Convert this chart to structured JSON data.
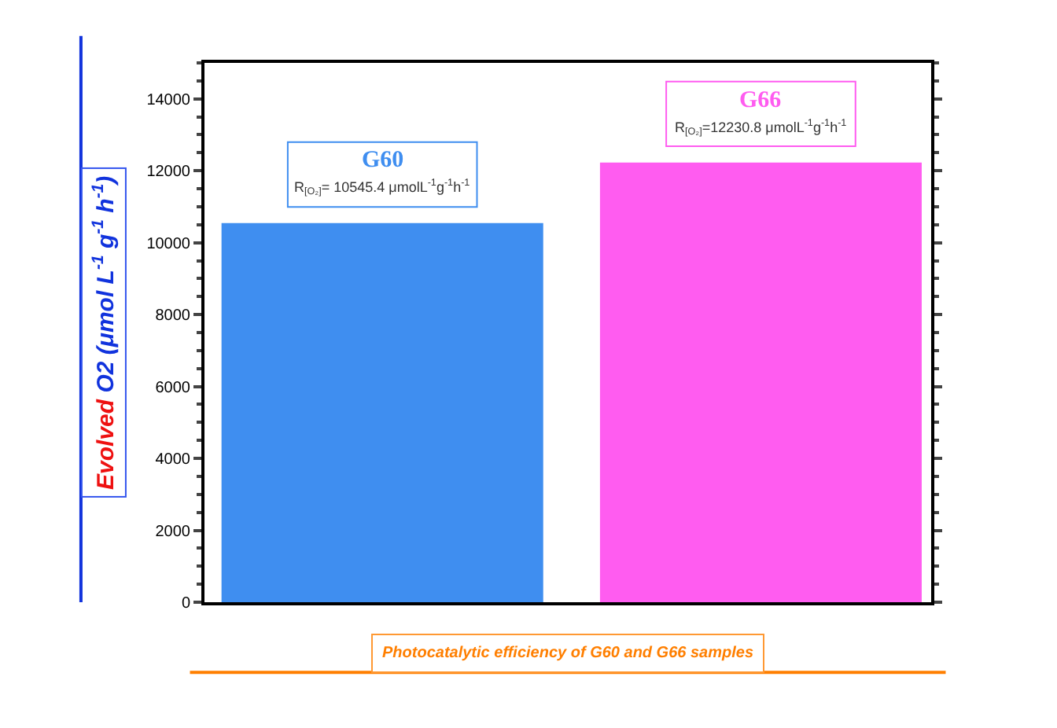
{
  "chart_data": {
    "type": "bar",
    "categories": [
      null,
      null
    ],
    "series": [
      {
        "colors": [
          "#3f8ef0",
          "#ff5cf0"
        ],
        "values": [
          10545.4,
          12230.8
        ]
      }
    ],
    "ylabel": "Evolved O2 (μmol L$^{-1}$ g$^{-1}$ h$^{-1}$)",
    "xlabel": "Photocatalytic efficiency of G60 and G66 samples",
    "annotations": [
      "G60",
      "R$_{[O₂]}$= 10545.4 μmolL$^{-1}$g$^{-1}$h$^{-1}$",
      "G66",
      "R$_{[O₂]}$=12230.8 μmolL$^{-1}$g$^{-1}$h$^{-1}$"
    ],
    "ylim": [
      0,
      15000
    ],
    "yticks": [
      0,
      2000,
      4000,
      6000,
      8000,
      10000,
      12000,
      14000
    ],
    "tick_labels": "y"
  }
}
